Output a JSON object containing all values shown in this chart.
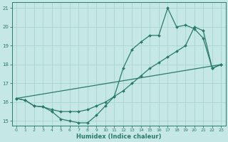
{
  "xlabel": "Humidex (Indice chaleur)",
  "bg_color": "#c5e8e5",
  "grid_color": "#a8d4d0",
  "line_color": "#2a7a6a",
  "spine_color": "#2a7a6a",
  "xlim": [
    -0.5,
    23.5
  ],
  "ylim": [
    14.75,
    21.3
  ],
  "xticks": [
    0,
    1,
    2,
    3,
    4,
    5,
    6,
    7,
    8,
    9,
    10,
    11,
    12,
    13,
    14,
    15,
    16,
    17,
    18,
    19,
    20,
    21,
    22,
    23
  ],
  "yticks": [
    15,
    16,
    17,
    18,
    19,
    20,
    21
  ],
  "line1_x": [
    0,
    1,
    2,
    3,
    4,
    5,
    6,
    7,
    8,
    9,
    10,
    11,
    12,
    13,
    14,
    15,
    16,
    17,
    18,
    19,
    20,
    21,
    22,
    23
  ],
  "line1_y": [
    16.2,
    16.1,
    15.8,
    15.75,
    15.5,
    15.1,
    15.0,
    14.9,
    14.9,
    15.3,
    15.8,
    16.3,
    17.8,
    18.8,
    19.2,
    19.55,
    19.55,
    21.0,
    20.0,
    20.1,
    19.9,
    19.4,
    17.8,
    18.0
  ],
  "line2_x": [
    0,
    1,
    2,
    3,
    4,
    5,
    6,
    7,
    8,
    9,
    10,
    11,
    12,
    13,
    14,
    15,
    16,
    17,
    18,
    19,
    20,
    21,
    22,
    23
  ],
  "line2_y": [
    16.2,
    16.1,
    15.8,
    15.75,
    15.6,
    15.5,
    15.5,
    15.5,
    15.6,
    15.8,
    16.0,
    16.3,
    16.6,
    17.0,
    17.4,
    17.8,
    18.1,
    18.4,
    18.7,
    19.0,
    20.0,
    19.8,
    17.8,
    18.0
  ],
  "line3_x": [
    0,
    23
  ],
  "line3_y": [
    16.2,
    18.0
  ]
}
